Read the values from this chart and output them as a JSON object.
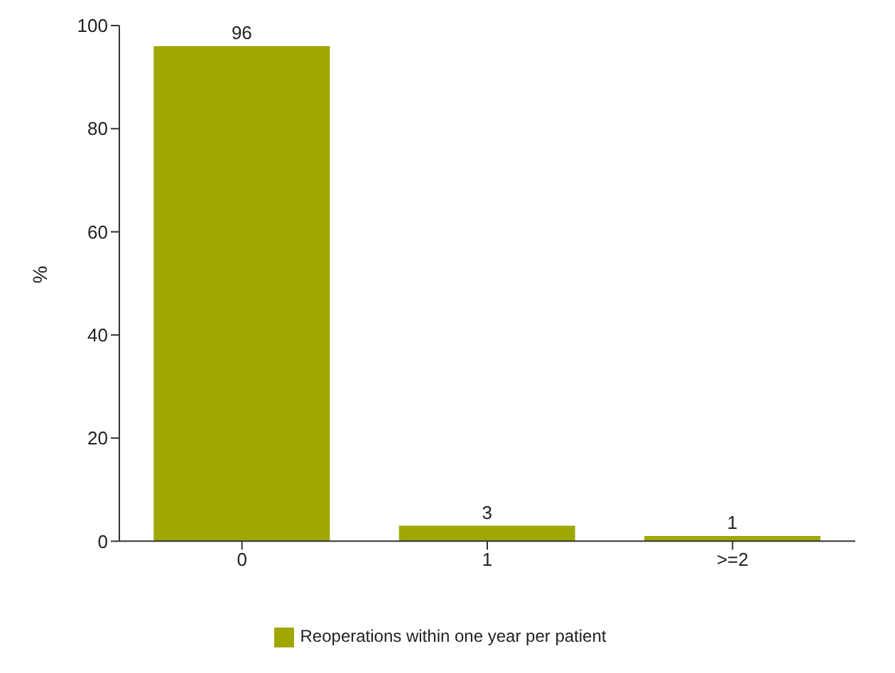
{
  "chart_data": {
    "type": "bar",
    "ylabel": "%",
    "categories": [
      "0",
      "1",
      ">=2"
    ],
    "series": [
      {
        "name": "Reoperations within one year per patient",
        "color": "#9fa800",
        "values": [
          96,
          3,
          1
        ]
      }
    ],
    "ylim": [
      0,
      100
    ],
    "yticks": [
      0,
      20,
      40,
      60,
      80,
      100
    ],
    "data_labels": true,
    "legend": "bottom",
    "grid": false
  }
}
